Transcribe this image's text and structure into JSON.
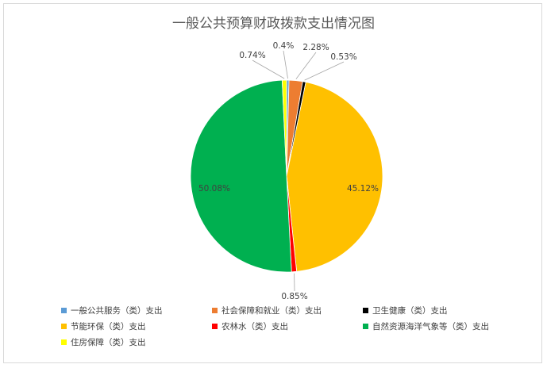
{
  "chart_data": {
    "type": "pie",
    "title": "一般公共预算财政拨款支出情况图",
    "slices": [
      {
        "label": "一般公共服务（类）支出",
        "value": 0.4,
        "data_label": "0.4%",
        "color": "#5b9bd5"
      },
      {
        "label": "社会保障和就业（类）支出",
        "value": 2.28,
        "data_label": "2.28%",
        "color": "#ed7d31"
      },
      {
        "label": "卫生健康（类）支出",
        "value": 0.53,
        "data_label": "0.53%",
        "color": "#000000"
      },
      {
        "label": "节能环保（类）支出",
        "value": 45.12,
        "data_label": "45.12%",
        "color": "#ffc000"
      },
      {
        "label": "农林水（类）支出",
        "value": 0.85,
        "data_label": "0.85%",
        "color": "#ff0000"
      },
      {
        "label": "自然资源海洋气象等（类）支出",
        "value": 50.08,
        "data_label": "50.08%",
        "color": "#00b050"
      },
      {
        "label": "住房保障（类）支出",
        "value": 0.74,
        "data_label": "0.74%",
        "color": "#ffff00"
      }
    ],
    "legend_position": "bottom"
  }
}
